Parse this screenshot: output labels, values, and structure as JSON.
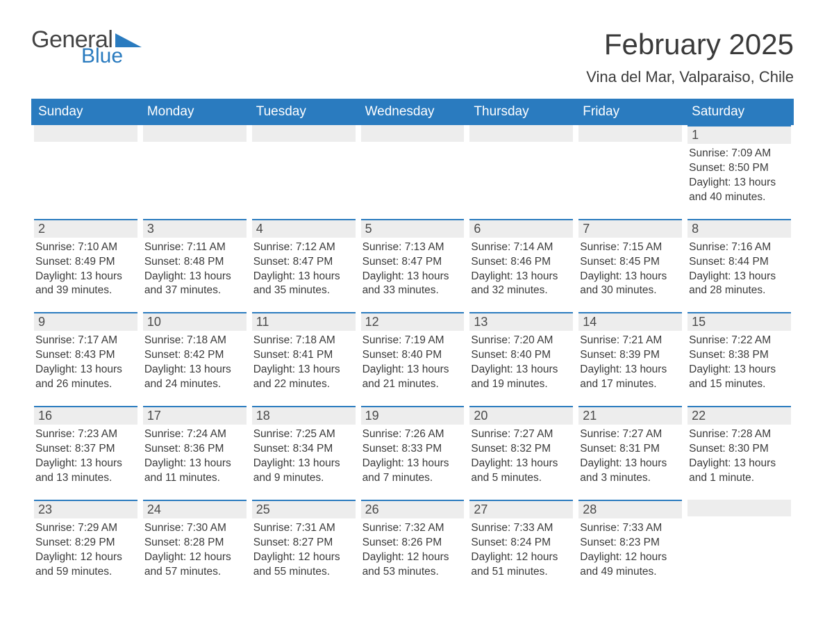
{
  "logo": {
    "word1": "General",
    "word2": "Blue",
    "tri_color": "#2a7bbf",
    "general_color": "#444444"
  },
  "title": "February 2025",
  "subtitle": "Vina del Mar, Valparaiso, Chile",
  "colors": {
    "header_bg": "#2a7bbf",
    "header_text": "#ffffff",
    "daybar_bg": "#ededed",
    "daybar_border": "#2a7bbf",
    "text": "#3a3a3a"
  },
  "typography": {
    "title_fontsize": 42,
    "subtitle_fontsize": 22,
    "header_fontsize": 19,
    "body_fontsize": 15.5
  },
  "day_headers": [
    "Sunday",
    "Monday",
    "Tuesday",
    "Wednesday",
    "Thursday",
    "Friday",
    "Saturday"
  ],
  "weeks": [
    [
      {
        "n": "",
        "sr": "",
        "ss": "",
        "dl": ""
      },
      {
        "n": "",
        "sr": "",
        "ss": "",
        "dl": ""
      },
      {
        "n": "",
        "sr": "",
        "ss": "",
        "dl": ""
      },
      {
        "n": "",
        "sr": "",
        "ss": "",
        "dl": ""
      },
      {
        "n": "",
        "sr": "",
        "ss": "",
        "dl": ""
      },
      {
        "n": "",
        "sr": "",
        "ss": "",
        "dl": ""
      },
      {
        "n": "1",
        "sr": "Sunrise: 7:09 AM",
        "ss": "Sunset: 8:50 PM",
        "dl": "Daylight: 13 hours and 40 minutes."
      }
    ],
    [
      {
        "n": "2",
        "sr": "Sunrise: 7:10 AM",
        "ss": "Sunset: 8:49 PM",
        "dl": "Daylight: 13 hours and 39 minutes."
      },
      {
        "n": "3",
        "sr": "Sunrise: 7:11 AM",
        "ss": "Sunset: 8:48 PM",
        "dl": "Daylight: 13 hours and 37 minutes."
      },
      {
        "n": "4",
        "sr": "Sunrise: 7:12 AM",
        "ss": "Sunset: 8:47 PM",
        "dl": "Daylight: 13 hours and 35 minutes."
      },
      {
        "n": "5",
        "sr": "Sunrise: 7:13 AM",
        "ss": "Sunset: 8:47 PM",
        "dl": "Daylight: 13 hours and 33 minutes."
      },
      {
        "n": "6",
        "sr": "Sunrise: 7:14 AM",
        "ss": "Sunset: 8:46 PM",
        "dl": "Daylight: 13 hours and 32 minutes."
      },
      {
        "n": "7",
        "sr": "Sunrise: 7:15 AM",
        "ss": "Sunset: 8:45 PM",
        "dl": "Daylight: 13 hours and 30 minutes."
      },
      {
        "n": "8",
        "sr": "Sunrise: 7:16 AM",
        "ss": "Sunset: 8:44 PM",
        "dl": "Daylight: 13 hours and 28 minutes."
      }
    ],
    [
      {
        "n": "9",
        "sr": "Sunrise: 7:17 AM",
        "ss": "Sunset: 8:43 PM",
        "dl": "Daylight: 13 hours and 26 minutes."
      },
      {
        "n": "10",
        "sr": "Sunrise: 7:18 AM",
        "ss": "Sunset: 8:42 PM",
        "dl": "Daylight: 13 hours and 24 minutes."
      },
      {
        "n": "11",
        "sr": "Sunrise: 7:18 AM",
        "ss": "Sunset: 8:41 PM",
        "dl": "Daylight: 13 hours and 22 minutes."
      },
      {
        "n": "12",
        "sr": "Sunrise: 7:19 AM",
        "ss": "Sunset: 8:40 PM",
        "dl": "Daylight: 13 hours and 21 minutes."
      },
      {
        "n": "13",
        "sr": "Sunrise: 7:20 AM",
        "ss": "Sunset: 8:40 PM",
        "dl": "Daylight: 13 hours and 19 minutes."
      },
      {
        "n": "14",
        "sr": "Sunrise: 7:21 AM",
        "ss": "Sunset: 8:39 PM",
        "dl": "Daylight: 13 hours and 17 minutes."
      },
      {
        "n": "15",
        "sr": "Sunrise: 7:22 AM",
        "ss": "Sunset: 8:38 PM",
        "dl": "Daylight: 13 hours and 15 minutes."
      }
    ],
    [
      {
        "n": "16",
        "sr": "Sunrise: 7:23 AM",
        "ss": "Sunset: 8:37 PM",
        "dl": "Daylight: 13 hours and 13 minutes."
      },
      {
        "n": "17",
        "sr": "Sunrise: 7:24 AM",
        "ss": "Sunset: 8:36 PM",
        "dl": "Daylight: 13 hours and 11 minutes."
      },
      {
        "n": "18",
        "sr": "Sunrise: 7:25 AM",
        "ss": "Sunset: 8:34 PM",
        "dl": "Daylight: 13 hours and 9 minutes."
      },
      {
        "n": "19",
        "sr": "Sunrise: 7:26 AM",
        "ss": "Sunset: 8:33 PM",
        "dl": "Daylight: 13 hours and 7 minutes."
      },
      {
        "n": "20",
        "sr": "Sunrise: 7:27 AM",
        "ss": "Sunset: 8:32 PM",
        "dl": "Daylight: 13 hours and 5 minutes."
      },
      {
        "n": "21",
        "sr": "Sunrise: 7:27 AM",
        "ss": "Sunset: 8:31 PM",
        "dl": "Daylight: 13 hours and 3 minutes."
      },
      {
        "n": "22",
        "sr": "Sunrise: 7:28 AM",
        "ss": "Sunset: 8:30 PM",
        "dl": "Daylight: 13 hours and 1 minute."
      }
    ],
    [
      {
        "n": "23",
        "sr": "Sunrise: 7:29 AM",
        "ss": "Sunset: 8:29 PM",
        "dl": "Daylight: 12 hours and 59 minutes."
      },
      {
        "n": "24",
        "sr": "Sunrise: 7:30 AM",
        "ss": "Sunset: 8:28 PM",
        "dl": "Daylight: 12 hours and 57 minutes."
      },
      {
        "n": "25",
        "sr": "Sunrise: 7:31 AM",
        "ss": "Sunset: 8:27 PM",
        "dl": "Daylight: 12 hours and 55 minutes."
      },
      {
        "n": "26",
        "sr": "Sunrise: 7:32 AM",
        "ss": "Sunset: 8:26 PM",
        "dl": "Daylight: 12 hours and 53 minutes."
      },
      {
        "n": "27",
        "sr": "Sunrise: 7:33 AM",
        "ss": "Sunset: 8:24 PM",
        "dl": "Daylight: 12 hours and 51 minutes."
      },
      {
        "n": "28",
        "sr": "Sunrise: 7:33 AM",
        "ss": "Sunset: 8:23 PM",
        "dl": "Daylight: 12 hours and 49 minutes."
      },
      {
        "n": "",
        "sr": "",
        "ss": "",
        "dl": ""
      }
    ]
  ]
}
